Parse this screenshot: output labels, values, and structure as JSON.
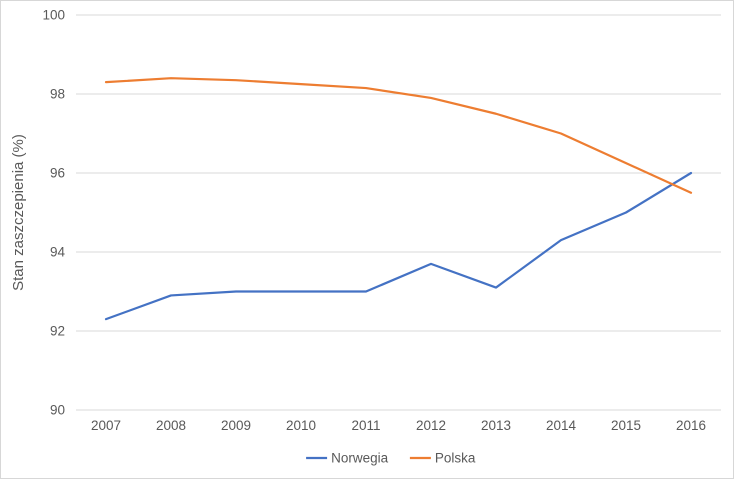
{
  "chart": {
    "ylabel": "Stan zaszczepienia (%)"
  },
  "chart_data": {
    "type": "line",
    "title": "",
    "xlabel": "",
    "ylabel": "Stan zaszczepienia (%)",
    "x": [
      2007,
      2008,
      2009,
      2010,
      2011,
      2012,
      2013,
      2014,
      2015,
      2016
    ],
    "series": [
      {
        "name": "Norwegia",
        "color": "#4472C4",
        "values": [
          92.3,
          92.9,
          93.0,
          93.0,
          93.0,
          93.7,
          93.1,
          94.3,
          95.0,
          96.0
        ]
      },
      {
        "name": "Polska",
        "color": "#ED7D31",
        "values": [
          98.3,
          98.4,
          98.35,
          98.25,
          98.15,
          97.9,
          97.5,
          97.0,
          96.25,
          95.5
        ]
      }
    ],
    "ylim": [
      90,
      100
    ],
    "y_ticks": [
      100,
      98,
      96,
      94,
      92,
      90
    ],
    "grid": true,
    "legend_position": "bottom",
    "colors": {
      "grid": "#d9d9d9",
      "axis": "#d9d9d9",
      "text": "#595959",
      "background": "#ffffff"
    }
  }
}
